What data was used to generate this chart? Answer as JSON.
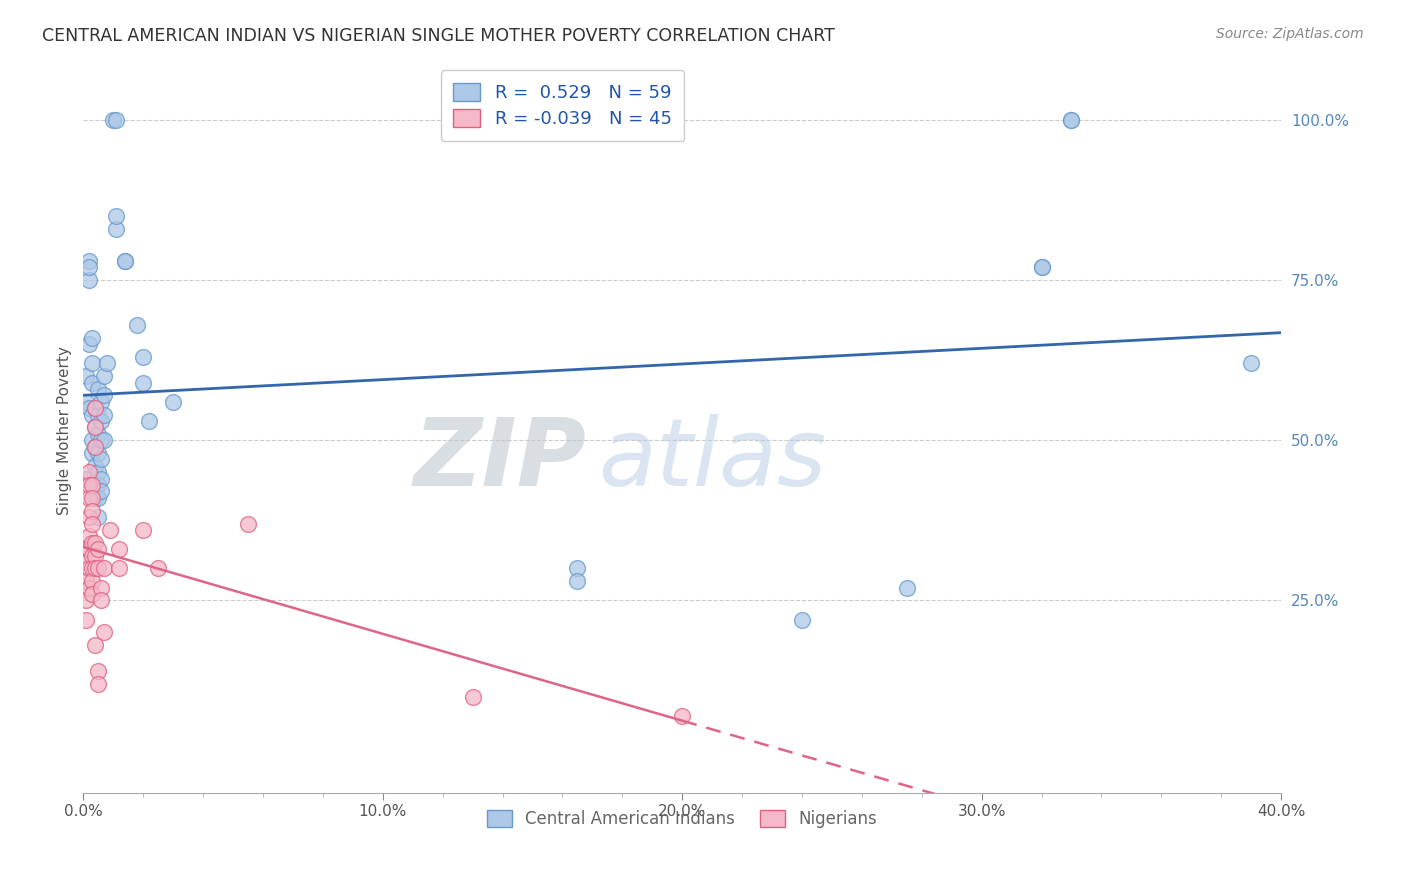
{
  "title": "CENTRAL AMERICAN INDIAN VS NIGERIAN SINGLE MOTHER POVERTY CORRELATION CHART",
  "source": "Source: ZipAtlas.com",
  "ylabel": "Single Mother Poverty",
  "xlabel_ticks": [
    "0.0%",
    "",
    "",
    "",
    "",
    "10.0%",
    "",
    "",
    "",
    "",
    "20.0%",
    "",
    "",
    "",
    "",
    "30.0%",
    "",
    "",
    "",
    "",
    "40.0%"
  ],
  "xlabel_vals": [
    0.0,
    0.02,
    0.04,
    0.06,
    0.08,
    0.1,
    0.12,
    0.14,
    0.16,
    0.18,
    0.2,
    0.22,
    0.24,
    0.26,
    0.28,
    0.3,
    0.32,
    0.34,
    0.36,
    0.38,
    0.4
  ],
  "xlabel_major_ticks": [
    0.0,
    0.1,
    0.2,
    0.3,
    0.4
  ],
  "xlabel_major_labels": [
    "0.0%",
    "10.0%",
    "20.0%",
    "30.0%",
    "40.0%"
  ],
  "xlabel_minor_ticks": [
    0.02,
    0.04,
    0.06,
    0.08,
    0.12,
    0.14,
    0.16,
    0.18,
    0.22,
    0.24,
    0.26,
    0.28,
    0.32,
    0.34,
    0.36,
    0.38
  ],
  "ylabel_ticks": [
    "25.0%",
    "50.0%",
    "75.0%",
    "100.0%"
  ],
  "ylabel_vals": [
    0.25,
    0.5,
    0.75,
    1.0
  ],
  "ylim_min": -0.05,
  "ylim_max": 1.08,
  "blue_R": 0.529,
  "blue_N": 59,
  "pink_R": -0.039,
  "pink_N": 45,
  "blue_label": "Central American Indians",
  "pink_label": "Nigerians",
  "watermark": "ZIPatlas",
  "blue_color": "#adc8e8",
  "pink_color": "#f5b8c8",
  "blue_edge_color": "#6699cc",
  "pink_edge_color": "#e06080",
  "blue_line_color": "#3366aa",
  "pink_line_color": "#dd6688",
  "blue_scatter": [
    [
      0.001,
      0.44
    ],
    [
      0.001,
      0.6
    ],
    [
      0.001,
      0.56
    ],
    [
      0.002,
      0.78
    ],
    [
      0.002,
      0.75
    ],
    [
      0.002,
      0.77
    ],
    [
      0.002,
      0.65
    ],
    [
      0.002,
      0.55
    ],
    [
      0.003,
      0.66
    ],
    [
      0.003,
      0.62
    ],
    [
      0.003,
      0.59
    ],
    [
      0.003,
      0.54
    ],
    [
      0.003,
      0.5
    ],
    [
      0.003,
      0.48
    ],
    [
      0.004,
      0.55
    ],
    [
      0.004,
      0.52
    ],
    [
      0.004,
      0.49
    ],
    [
      0.004,
      0.46
    ],
    [
      0.004,
      0.43
    ],
    [
      0.004,
      0.41
    ],
    [
      0.005,
      0.58
    ],
    [
      0.005,
      0.54
    ],
    [
      0.005,
      0.51
    ],
    [
      0.005,
      0.48
    ],
    [
      0.005,
      0.45
    ],
    [
      0.005,
      0.43
    ],
    [
      0.005,
      0.41
    ],
    [
      0.005,
      0.38
    ],
    [
      0.006,
      0.56
    ],
    [
      0.006,
      0.53
    ],
    [
      0.006,
      0.5
    ],
    [
      0.006,
      0.47
    ],
    [
      0.006,
      0.44
    ],
    [
      0.006,
      0.42
    ],
    [
      0.007,
      0.6
    ],
    [
      0.007,
      0.57
    ],
    [
      0.007,
      0.54
    ],
    [
      0.007,
      0.5
    ],
    [
      0.008,
      0.62
    ],
    [
      0.01,
      1.0
    ],
    [
      0.011,
      1.0
    ],
    [
      0.011,
      0.83
    ],
    [
      0.011,
      0.85
    ],
    [
      0.014,
      0.78
    ],
    [
      0.014,
      0.78
    ],
    [
      0.018,
      0.68
    ],
    [
      0.02,
      0.63
    ],
    [
      0.02,
      0.59
    ],
    [
      0.022,
      0.53
    ],
    [
      0.03,
      0.56
    ],
    [
      0.165,
      0.3
    ],
    [
      0.165,
      0.28
    ],
    [
      0.24,
      0.22
    ],
    [
      0.275,
      0.27
    ],
    [
      0.32,
      0.77
    ],
    [
      0.32,
      0.77
    ],
    [
      0.33,
      1.0
    ],
    [
      0.33,
      1.0
    ],
    [
      0.39,
      0.62
    ]
  ],
  "pink_scatter": [
    [
      0.001,
      0.33
    ],
    [
      0.001,
      0.31
    ],
    [
      0.001,
      0.28
    ],
    [
      0.001,
      0.25
    ],
    [
      0.001,
      0.22
    ],
    [
      0.002,
      0.45
    ],
    [
      0.002,
      0.43
    ],
    [
      0.002,
      0.41
    ],
    [
      0.002,
      0.38
    ],
    [
      0.002,
      0.35
    ],
    [
      0.002,
      0.33
    ],
    [
      0.002,
      0.3
    ],
    [
      0.002,
      0.27
    ],
    [
      0.003,
      0.43
    ],
    [
      0.003,
      0.41
    ],
    [
      0.003,
      0.39
    ],
    [
      0.003,
      0.37
    ],
    [
      0.003,
      0.34
    ],
    [
      0.003,
      0.32
    ],
    [
      0.003,
      0.3
    ],
    [
      0.003,
      0.28
    ],
    [
      0.003,
      0.26
    ],
    [
      0.004,
      0.55
    ],
    [
      0.004,
      0.52
    ],
    [
      0.004,
      0.49
    ],
    [
      0.004,
      0.34
    ],
    [
      0.004,
      0.32
    ],
    [
      0.004,
      0.3
    ],
    [
      0.004,
      0.18
    ],
    [
      0.005,
      0.33
    ],
    [
      0.005,
      0.3
    ],
    [
      0.005,
      0.14
    ],
    [
      0.005,
      0.12
    ],
    [
      0.006,
      0.27
    ],
    [
      0.006,
      0.25
    ],
    [
      0.007,
      0.3
    ],
    [
      0.007,
      0.2
    ],
    [
      0.009,
      0.36
    ],
    [
      0.012,
      0.33
    ],
    [
      0.012,
      0.3
    ],
    [
      0.02,
      0.36
    ],
    [
      0.025,
      0.3
    ],
    [
      0.055,
      0.37
    ],
    [
      0.13,
      0.1
    ],
    [
      0.2,
      0.07
    ]
  ]
}
